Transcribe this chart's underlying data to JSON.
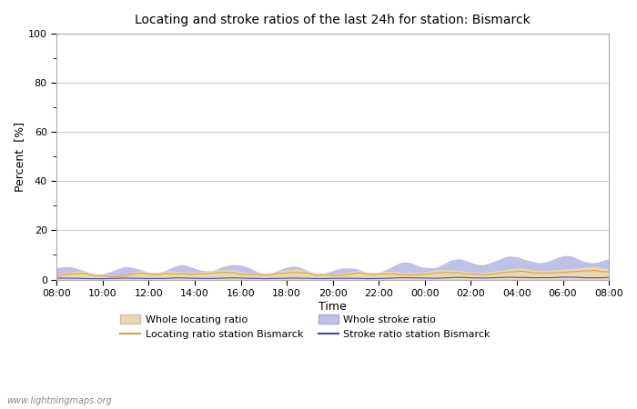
{
  "title": "Locating and stroke ratios of the last 24h for station: Bismarck",
  "xlabel": "Time",
  "ylabel": "Percent  [%]",
  "ylim": [
    0,
    100
  ],
  "yticks": [
    0,
    20,
    40,
    60,
    80,
    100
  ],
  "xtick_labels": [
    "08:00",
    "10:00",
    "12:00",
    "14:00",
    "16:00",
    "18:00",
    "20:00",
    "22:00",
    "00:00",
    "02:00",
    "04:00",
    "06:00",
    "08:00"
  ],
  "fill_locating_color": "#e8d8b0",
  "fill_stroke_color": "#c0c0e8",
  "line_locating_color": "#d4a040",
  "line_stroke_color": "#4040b0",
  "watermark": "www.lightningmaps.org",
  "n_points": 1441
}
